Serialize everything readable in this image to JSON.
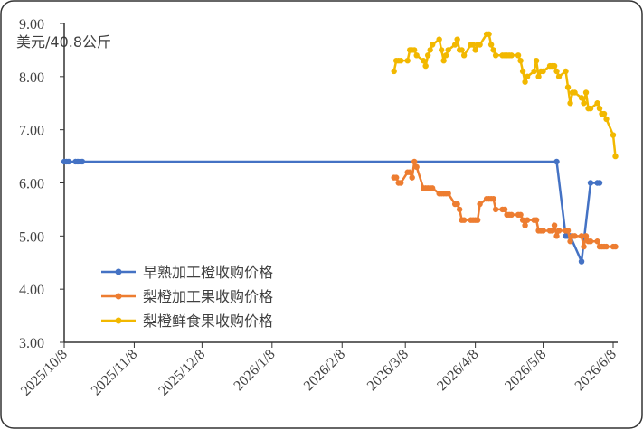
{
  "chart_data": {
    "type": "line",
    "y_label": "美元/40.8公斤",
    "xlim": [
      "2025-10-08",
      "2026-06-10"
    ],
    "xticks": [
      {
        "value": "2025-10-08",
        "label": "2025/10/8"
      },
      {
        "value": "2025-11-08",
        "label": "2025/11/8"
      },
      {
        "value": "2025-12-08",
        "label": "2025/12/8"
      },
      {
        "value": "2026-01-08",
        "label": "2026/1/8"
      },
      {
        "value": "2026-02-08",
        "label": "2026/2/8"
      },
      {
        "value": "2026-03-08",
        "label": "2026/3/8"
      },
      {
        "value": "2026-04-08",
        "label": "2026/4/8"
      },
      {
        "value": "2026-05-08",
        "label": "2026/5/8"
      },
      {
        "value": "2026-06-08",
        "label": "2026/6/8"
      }
    ],
    "ylim": [
      3,
      9
    ],
    "yticks": [
      {
        "value": 3,
        "label": "3.00"
      },
      {
        "value": 4,
        "label": "4.00"
      },
      {
        "value": 5,
        "label": "5.00"
      },
      {
        "value": 6,
        "label": "6.00"
      },
      {
        "value": 7,
        "label": "7.00"
      },
      {
        "value": 8,
        "label": "8.00"
      },
      {
        "value": 9,
        "label": "9.00"
      }
    ],
    "grid": false,
    "legend": "lower-left",
    "series": [
      {
        "name": "早熟加工橙收购价格",
        "color": "#4472c4",
        "x": [
          "2025-10-08",
          "2025-10-09",
          "2025-10-10",
          "2025-10-13",
          "2025-10-14",
          "2025-10-15",
          "2025-10-16",
          "2026-05-14",
          "2026-05-18",
          "2026-05-19",
          "2026-05-20",
          "2026-05-25",
          "2026-05-29",
          "2026-06-01",
          "2026-06-02"
        ],
        "values": [
          6.4,
          6.4,
          6.4,
          6.4,
          6.4,
          6.4,
          6.4,
          6.4,
          5.0,
          5.0,
          5.0,
          4.52,
          6.0,
          6.0,
          6.0
        ]
      },
      {
        "name": "梨橙加工果收购价格",
        "color": "#ed7d31",
        "x": [
          "2026-03-03",
          "2026-03-04",
          "2026-03-05",
          "2026-03-06",
          "2026-03-09",
          "2026-03-10",
          "2026-03-11",
          "2026-03-12",
          "2026-03-13",
          "2026-03-16",
          "2026-03-17",
          "2026-03-18",
          "2026-03-19",
          "2026-03-20",
          "2026-03-23",
          "2026-03-24",
          "2026-03-25",
          "2026-03-26",
          "2026-03-27",
          "2026-03-30",
          "2026-03-31",
          "2026-04-01",
          "2026-04-02",
          "2026-04-03",
          "2026-04-06",
          "2026-04-07",
          "2026-04-08",
          "2026-04-09",
          "2026-04-10",
          "2026-04-13",
          "2026-04-14",
          "2026-04-15",
          "2026-04-16",
          "2026-04-17",
          "2026-04-20",
          "2026-04-21",
          "2026-04-22",
          "2026-04-23",
          "2026-04-24",
          "2026-04-27",
          "2026-04-28",
          "2026-04-29",
          "2026-04-30",
          "2026-05-01",
          "2026-05-04",
          "2026-05-05",
          "2026-05-06",
          "2026-05-07",
          "2026-05-08",
          "2026-05-11",
          "2026-05-12",
          "2026-05-13",
          "2026-05-14",
          "2026-05-15",
          "2026-05-18",
          "2026-05-19",
          "2026-05-20",
          "2026-05-21",
          "2026-05-22",
          "2026-05-25",
          "2026-05-26",
          "2026-05-27",
          "2026-05-28",
          "2026-05-29",
          "2026-06-01",
          "2026-06-02",
          "2026-06-03",
          "2026-06-04",
          "2026-06-05",
          "2026-06-08",
          "2026-06-09"
        ],
        "values": [
          6.1,
          6.1,
          6.0,
          6.0,
          6.2,
          6.2,
          6.1,
          6.4,
          6.3,
          5.9,
          5.9,
          5.9,
          5.9,
          5.9,
          5.8,
          5.8,
          5.8,
          5.8,
          5.8,
          5.6,
          5.6,
          5.5,
          5.3,
          5.3,
          5.3,
          5.3,
          5.3,
          5.3,
          5.6,
          5.7,
          5.7,
          5.7,
          5.7,
          5.5,
          5.5,
          5.5,
          5.4,
          5.4,
          5.4,
          5.4,
          5.4,
          5.3,
          5.2,
          5.3,
          5.3,
          5.3,
          5.1,
          5.1,
          5.1,
          5.1,
          5.1,
          5.2,
          5.0,
          5.1,
          5.1,
          5.1,
          4.9,
          5.0,
          5.0,
          5.0,
          4.8,
          5.0,
          4.9,
          4.9,
          4.9,
          4.8,
          4.8,
          4.8,
          4.8,
          4.8,
          4.8
        ]
      },
      {
        "name": "梨橙鲜食果收购价格",
        "color": "#f2b800",
        "x": [
          "2026-03-03",
          "2026-03-04",
          "2026-03-05",
          "2026-03-06",
          "2026-03-09",
          "2026-03-10",
          "2026-03-11",
          "2026-03-12",
          "2026-03-13",
          "2026-03-16",
          "2026-03-17",
          "2026-03-18",
          "2026-03-19",
          "2026-03-20",
          "2026-03-23",
          "2026-03-24",
          "2026-03-25",
          "2026-03-26",
          "2026-03-27",
          "2026-03-30",
          "2026-03-31",
          "2026-04-01",
          "2026-04-02",
          "2026-04-03",
          "2026-04-06",
          "2026-04-07",
          "2026-04-08",
          "2026-04-09",
          "2026-04-10",
          "2026-04-13",
          "2026-04-14",
          "2026-04-15",
          "2026-04-16",
          "2026-04-17",
          "2026-04-20",
          "2026-04-21",
          "2026-04-22",
          "2026-04-23",
          "2026-04-24",
          "2026-04-27",
          "2026-04-28",
          "2026-04-29",
          "2026-04-30",
          "2026-05-01",
          "2026-05-04",
          "2026-05-05",
          "2026-05-06",
          "2026-05-07",
          "2026-05-08",
          "2026-05-11",
          "2026-05-12",
          "2026-05-13",
          "2026-05-14",
          "2026-05-15",
          "2026-05-18",
          "2026-05-19",
          "2026-05-20",
          "2026-05-21",
          "2026-05-22",
          "2026-05-25",
          "2026-05-26",
          "2026-05-27",
          "2026-05-28",
          "2026-05-29",
          "2026-06-01",
          "2026-06-02",
          "2026-06-03",
          "2026-06-04",
          "2026-06-05",
          "2026-06-08",
          "2026-06-09"
        ],
        "values": [
          8.1,
          8.3,
          8.3,
          8.3,
          8.3,
          8.5,
          8.5,
          8.5,
          8.4,
          8.3,
          8.2,
          8.4,
          8.5,
          8.6,
          8.7,
          8.5,
          8.3,
          8.4,
          8.5,
          8.6,
          8.7,
          8.5,
          8.5,
          8.4,
          8.6,
          8.6,
          8.5,
          8.6,
          8.6,
          8.8,
          8.8,
          8.6,
          8.5,
          8.4,
          8.4,
          8.4,
          8.4,
          8.4,
          8.4,
          8.4,
          8.3,
          8.1,
          7.9,
          8.0,
          8.1,
          8.3,
          8.0,
          8.1,
          8.1,
          8.2,
          8.2,
          8.2,
          8.1,
          8.0,
          8.1,
          7.8,
          7.5,
          7.7,
          7.7,
          7.6,
          7.5,
          7.7,
          7.4,
          7.4,
          7.5,
          7.4,
          7.3,
          7.3,
          7.2,
          6.9,
          6.5
        ]
      }
    ]
  }
}
